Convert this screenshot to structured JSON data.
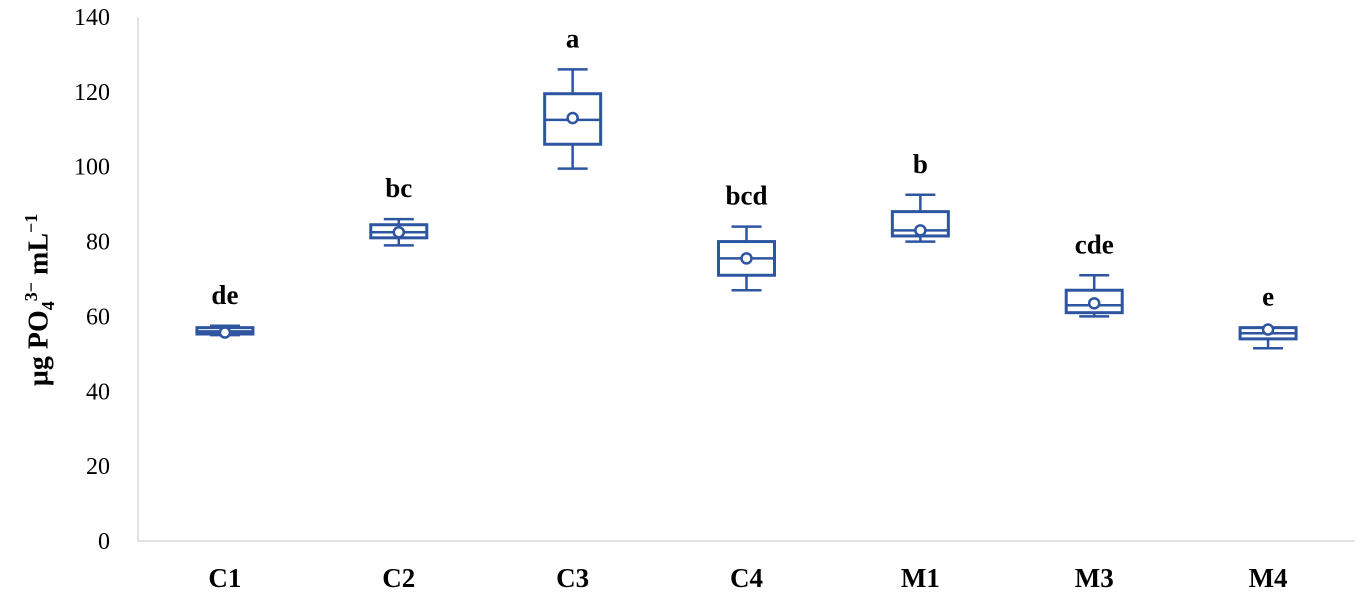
{
  "chart_data": {
    "type": "box",
    "ylabel": {
      "base": "µg PO",
      "sub": "4",
      "sup": "3−",
      "rest": " mL",
      "rest_sup": "−1"
    },
    "ylim": [
      0,
      140
    ],
    "yticks": [
      0,
      20,
      40,
      60,
      80,
      100,
      120,
      140
    ],
    "grid": false,
    "color": "#2e55a0",
    "categories": [
      "C1",
      "C2",
      "C3",
      "C4",
      "M1",
      "M3",
      "M4"
    ],
    "boxes": [
      {
        "category": "C1",
        "min": 55,
        "q1": 55.3,
        "median": 56,
        "q3": 57,
        "max": 57.5,
        "mean": 55.7,
        "label": "de"
      },
      {
        "category": "C2",
        "min": 79,
        "q1": 81,
        "median": 82.5,
        "q3": 84.5,
        "max": 86,
        "mean": 82.5,
        "label": "bc"
      },
      {
        "category": "C3",
        "min": 99.5,
        "q1": 106,
        "median": 112.5,
        "q3": 119.5,
        "max": 126,
        "mean": 113,
        "label": "a"
      },
      {
        "category": "C4",
        "min": 67,
        "q1": 71,
        "median": 75.5,
        "q3": 80,
        "max": 84,
        "mean": 75.5,
        "label": "bcd"
      },
      {
        "category": "M1",
        "min": 80,
        "q1": 81.5,
        "median": 83,
        "q3": 88,
        "max": 92.5,
        "mean": 83,
        "label": "b"
      },
      {
        "category": "M3",
        "min": 60,
        "q1": 61,
        "median": 63,
        "q3": 67,
        "max": 71,
        "mean": 63.5,
        "label": "cde"
      },
      {
        "category": "M4",
        "min": 51.5,
        "q1": 54,
        "median": 55.5,
        "q3": 57,
        "max": 57,
        "mean": 56.5,
        "label": "e"
      }
    ]
  }
}
